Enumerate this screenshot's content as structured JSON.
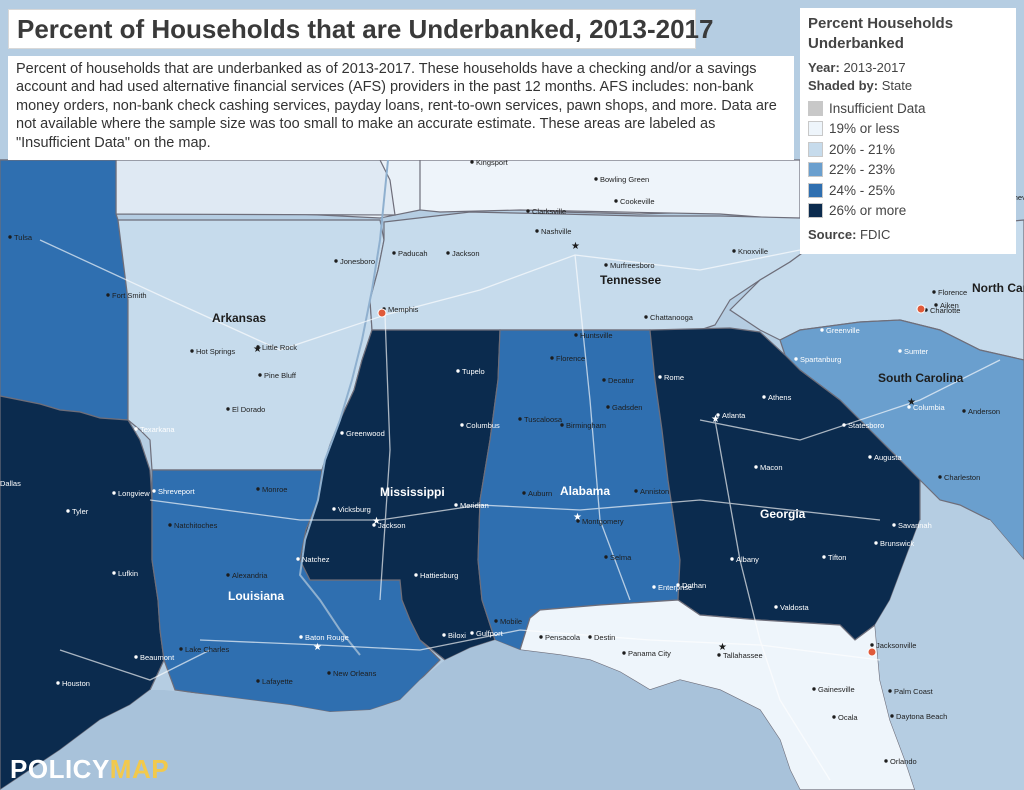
{
  "title": "Percent of Households that are Underbanked, 2013-2017",
  "description": "Percent of households that are underbanked as of 2013-2017. These households have a checking and/or a savings account and had used alternative financial services (AFS) providers in the past 12 months. AFS includes: non-bank money orders, non-bank check cashing services, payday loans, rent-to-own services, pawn shops, and more. Data are not available where the sample size was too small to make an accurate estimate. These areas are labeled as \"Insufficient Data\" on the map.",
  "legend": {
    "title_line1": "Percent Households",
    "title_line2": "Underbanked",
    "year_label": "Year:",
    "year_value": "2013-2017",
    "shaded_label": "Shaded by:",
    "shaded_value": "State",
    "items": [
      {
        "label": "Insufficient Data",
        "color": "#c8c8c8"
      },
      {
        "label": "19% or less",
        "color": "#eef5fb"
      },
      {
        "label": "20% - 21%",
        "color": "#c6dbec"
      },
      {
        "label": "22% - 23%",
        "color": "#6a9fce"
      },
      {
        "label": "24% - 25%",
        "color": "#2f6fb0"
      },
      {
        "label": "26% or more",
        "color": "#0b2b4e"
      }
    ],
    "source_label": "Source:",
    "source_value": "FDIC"
  },
  "logo": {
    "part1": "POLICY",
    "part2": "MAP"
  },
  "states": {
    "arkansas": "Arkansas",
    "tennessee": "Tennessee",
    "mississippi": "Mississippi",
    "alabama": "Alabama",
    "georgia": "Georgia",
    "louisiana": "Louisiana",
    "south_carolina": "South Carolina",
    "north_carolina": "North Car"
  },
  "cities": [
    {
      "name": "Memphis"
    },
    {
      "name": "Nashville"
    },
    {
      "name": "Little Rock"
    },
    {
      "name": "Jackson"
    },
    {
      "name": "Montgomery"
    },
    {
      "name": "Atlanta"
    },
    {
      "name": "Baton Rouge"
    },
    {
      "name": "New Orleans"
    },
    {
      "name": "Columbia"
    },
    {
      "name": "Charlotte"
    },
    {
      "name": "Tallahassee"
    },
    {
      "name": "Jacksonville"
    },
    {
      "name": "Houston"
    },
    {
      "name": "Tulsa"
    },
    {
      "name": "Dallas"
    },
    {
      "name": "Shreveport"
    },
    {
      "name": "Chattanooga"
    },
    {
      "name": "Birmingham"
    },
    {
      "name": "Huntsville"
    },
    {
      "name": "Savannah"
    },
    {
      "name": "Augusta"
    },
    {
      "name": "Macon"
    },
    {
      "name": "Mobile"
    },
    {
      "name": "Pensacola"
    },
    {
      "name": "Gainesville"
    },
    {
      "name": "Knoxville"
    },
    {
      "name": "Greenville"
    },
    {
      "name": "Lafayette"
    },
    {
      "name": "Lake Charles"
    },
    {
      "name": "Alexandria"
    },
    {
      "name": "Monroe"
    },
    {
      "name": "Hattiesburg"
    },
    {
      "name": "Tuscaloosa"
    },
    {
      "name": "Columbus"
    },
    {
      "name": "Albany"
    },
    {
      "name": "Charleston"
    },
    {
      "name": "Texarkana"
    },
    {
      "name": "Fort Smith"
    },
    {
      "name": "Jonesboro"
    },
    {
      "name": "Tupelo"
    },
    {
      "name": "Meridian"
    },
    {
      "name": "Natchez"
    },
    {
      "name": "Vicksburg"
    },
    {
      "name": "Greenwood"
    },
    {
      "name": "Dothan"
    },
    {
      "name": "Valdosta"
    },
    {
      "name": "Panama City"
    },
    {
      "name": "Ocala"
    },
    {
      "name": "Orlando"
    },
    {
      "name": "Daytona Beach"
    },
    {
      "name": "Palm Coast"
    },
    {
      "name": "Beaumont"
    },
    {
      "name": "Lufkin"
    },
    {
      "name": "Longview"
    },
    {
      "name": "Tyler"
    },
    {
      "name": "Clarksville"
    },
    {
      "name": "Bowling Green"
    },
    {
      "name": "Jackson"
    },
    {
      "name": "Athens"
    },
    {
      "name": "Rome"
    },
    {
      "name": "Gulfport"
    },
    {
      "name": "Biloxi"
    },
    {
      "name": "Destin"
    },
    {
      "name": "Hot Springs"
    },
    {
      "name": "Pine Bluff"
    },
    {
      "name": "El Dorado"
    },
    {
      "name": "Natchitoches"
    },
    {
      "name": "Murfreesboro"
    },
    {
      "name": "Cookeville"
    },
    {
      "name": "Florence"
    },
    {
      "name": "Decatur"
    },
    {
      "name": "Gadsden"
    },
    {
      "name": "Anniston"
    },
    {
      "name": "Auburn"
    },
    {
      "name": "Selma"
    },
    {
      "name": "Enterprise"
    },
    {
      "name": "Tifton"
    },
    {
      "name": "Brunswick"
    },
    {
      "name": "Statesboro"
    },
    {
      "name": "Aiken"
    },
    {
      "name": "Spartanburg"
    },
    {
      "name": "Anderson"
    },
    {
      "name": "Sumter"
    },
    {
      "name": "Florence"
    },
    {
      "name": "Asheville"
    },
    {
      "name": "Kingsport"
    },
    {
      "name": "Paducah"
    },
    {
      "name": "Jonesboro"
    }
  ]
}
